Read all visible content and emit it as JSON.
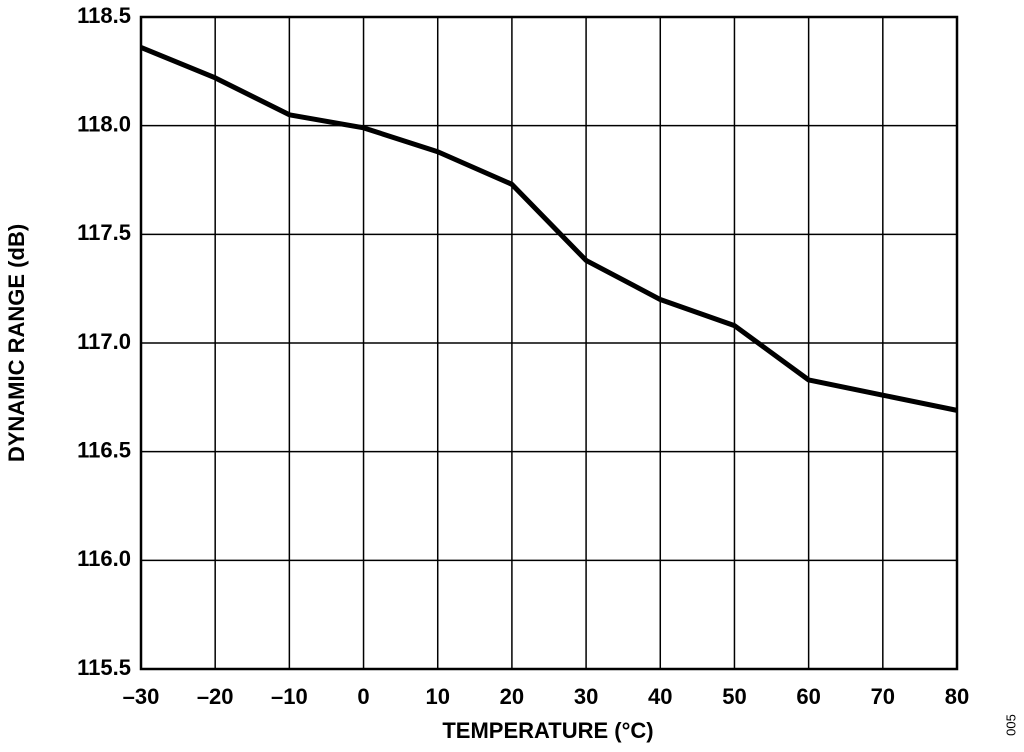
{
  "chart_data": {
    "type": "line",
    "x_label": "TEMPERATURE (°C)",
    "y_label": "DYNAMIC RANGE (dB)",
    "figure_code": "005",
    "x": [
      -30,
      -20,
      -10,
      0,
      10,
      20,
      30,
      40,
      50,
      60,
      70,
      80
    ],
    "series": [
      {
        "color": "#000000",
        "values": [
          118.36,
          118.22,
          118.05,
          117.99,
          117.88,
          117.73,
          117.38,
          117.2,
          117.08,
          116.83,
          116.76,
          116.69
        ]
      }
    ],
    "xlim": [
      -30,
      80
    ],
    "xticks": [
      {
        "value": -30,
        "label": "–30"
      },
      {
        "value": -20,
        "label": "–20"
      },
      {
        "value": -10,
        "label": "–10"
      },
      0,
      10,
      20,
      30,
      40,
      50,
      60,
      70,
      80
    ],
    "ylim": [
      115.5,
      118.5
    ],
    "yticks": [
      115.5,
      {
        "value": 116,
        "label": "116.0"
      },
      116.5,
      {
        "value": 117,
        "label": "117.0"
      },
      117.5,
      {
        "value": 118,
        "label": "118.0"
      },
      118.5
    ],
    "grid": true
  }
}
